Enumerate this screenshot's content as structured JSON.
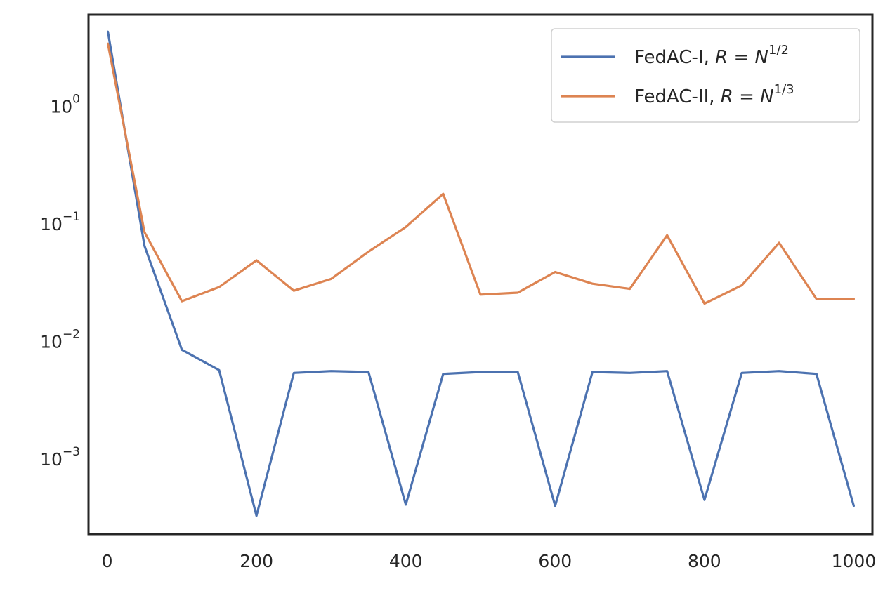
{
  "chart_data": {
    "type": "line",
    "title": "",
    "xlabel": "",
    "ylabel": "",
    "y_scale": "log",
    "xlim": [
      -25,
      1025
    ],
    "ylim": [
      0.00023,
      6.0
    ],
    "grid": false,
    "legend_position": "top-right",
    "x_ticks": [
      0,
      200,
      400,
      600,
      800,
      1000
    ],
    "y_ticks": [
      {
        "value": 1,
        "base": "10",
        "exp": "0"
      },
      {
        "value": 0.1,
        "base": "10",
        "exp": "−1"
      },
      {
        "value": 0.01,
        "base": "10",
        "exp": "−2"
      },
      {
        "value": 0.001,
        "base": "10",
        "exp": "−3"
      }
    ],
    "x": [
      1,
      50,
      100,
      150,
      200,
      250,
      300,
      350,
      400,
      450,
      500,
      550,
      600,
      650,
      700,
      750,
      800,
      850,
      900,
      950,
      1000
    ],
    "series": [
      {
        "name": "FedAC-I, R = N^{1/2}",
        "legend_parts": {
          "prefix": "FedAC-I, ",
          "r": "R",
          "eq": " = ",
          "n": "N",
          "sup": "1/2"
        },
        "color": "#4c72b0",
        "values": [
          4.3,
          0.065,
          0.0085,
          0.0057,
          0.00033,
          0.0054,
          0.0056,
          0.0055,
          0.00041,
          0.0053,
          0.0055,
          0.0055,
          0.0004,
          0.0055,
          0.0054,
          0.0056,
          0.00045,
          0.0054,
          0.0056,
          0.0053,
          0.0004
        ]
      },
      {
        "name": "FedAC-II, R = N^{1/3}",
        "legend_parts": {
          "prefix": "FedAC-II, ",
          "r": "R",
          "eq": " = ",
          "n": "N",
          "sup": "1/3"
        },
        "color": "#dd8452",
        "values": [
          3.4,
          0.085,
          0.022,
          0.029,
          0.049,
          0.027,
          0.034,
          0.058,
          0.094,
          0.18,
          0.025,
          0.026,
          0.039,
          0.031,
          0.028,
          0.08,
          0.021,
          0.03,
          0.069,
          0.023,
          0.023
        ]
      }
    ]
  }
}
